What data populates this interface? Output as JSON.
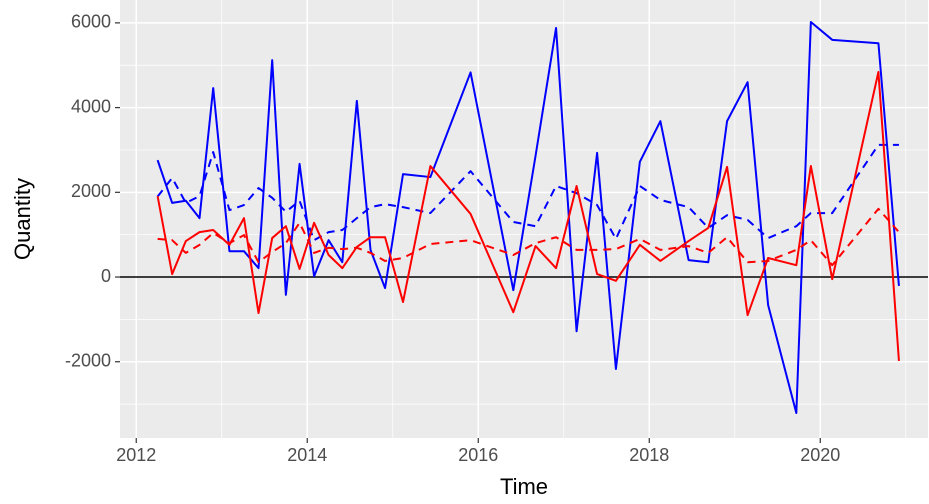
{
  "chart_data": {
    "type": "line",
    "xlabel": "Time",
    "ylabel": "Quantity",
    "x": [
      2012.25,
      2012.42,
      2012.58,
      2012.74,
      2012.9,
      2013.09,
      2013.26,
      2013.43,
      2013.59,
      2013.75,
      2013.91,
      2014.08,
      2014.25,
      2014.41,
      2014.58,
      2014.74,
      2014.91,
      2015.12,
      2015.44,
      2015.91,
      2016.41,
      2016.67,
      2016.91,
      2017.15,
      2017.39,
      2017.61,
      2017.89,
      2018.13,
      2018.46,
      2018.69,
      2018.91,
      2019.15,
      2019.39,
      2019.72,
      2019.89,
      2020.14,
      2020.68,
      2020.92
    ],
    "series": [
      {
        "color": "#0000ff",
        "linetype": "solid",
        "values": [
          2760,
          1750,
          1800,
          1390,
          4460,
          610,
          610,
          210,
          5120,
          -420,
          2670,
          20,
          870,
          350,
          4160,
          640,
          -260,
          2430,
          2360,
          4830,
          -310,
          2860,
          5880,
          -1280,
          2930,
          -2170,
          2720,
          3680,
          400,
          350,
          3680,
          4600,
          -660,
          -3210,
          6020,
          5600,
          5520,
          -210
        ]
      },
      {
        "color": "#0000ff",
        "linetype": "dashed",
        "values": [
          1900,
          2340,
          1750,
          1910,
          2950,
          1580,
          1700,
          2100,
          1870,
          1540,
          1800,
          870,
          1060,
          1110,
          1390,
          1650,
          1720,
          1650,
          1510,
          2500,
          1300,
          1200,
          2150,
          1980,
          1700,
          900,
          2150,
          1820,
          1650,
          1160,
          1460,
          1350,
          920,
          1200,
          1510,
          1510,
          3120,
          3120
        ]
      },
      {
        "color": "#ff0000",
        "linetype": "solid",
        "values": [
          1910,
          70,
          850,
          1060,
          1110,
          760,
          1390,
          -850,
          920,
          1200,
          190,
          1280,
          520,
          210,
          710,
          940,
          940,
          -590,
          2620,
          1490,
          -830,
          730,
          210,
          2150,
          70,
          -90,
          760,
          380,
          850,
          1160,
          2600,
          -900,
          450,
          280,
          2620,
          -50,
          4840,
          -1980
        ]
      },
      {
        "color": "#ff0000",
        "linetype": "dashed",
        "values": [
          900,
          870,
          570,
          760,
          1040,
          800,
          990,
          350,
          590,
          800,
          1280,
          570,
          690,
          660,
          690,
          570,
          380,
          450,
          780,
          870,
          520,
          800,
          940,
          640,
          640,
          660,
          900,
          640,
          730,
          570,
          940,
          350,
          380,
          640,
          870,
          280,
          1610,
          1060
        ]
      }
    ],
    "hline": 0,
    "xlim": [
      2011.81,
      2021.26
    ],
    "xticks": [
      2012,
      2014,
      2016,
      2018,
      2020
    ],
    "ylim": [
      -3800,
      6540
    ],
    "yticks": [
      -2000,
      0,
      2000,
      4000,
      6000
    ],
    "grid": true
  }
}
